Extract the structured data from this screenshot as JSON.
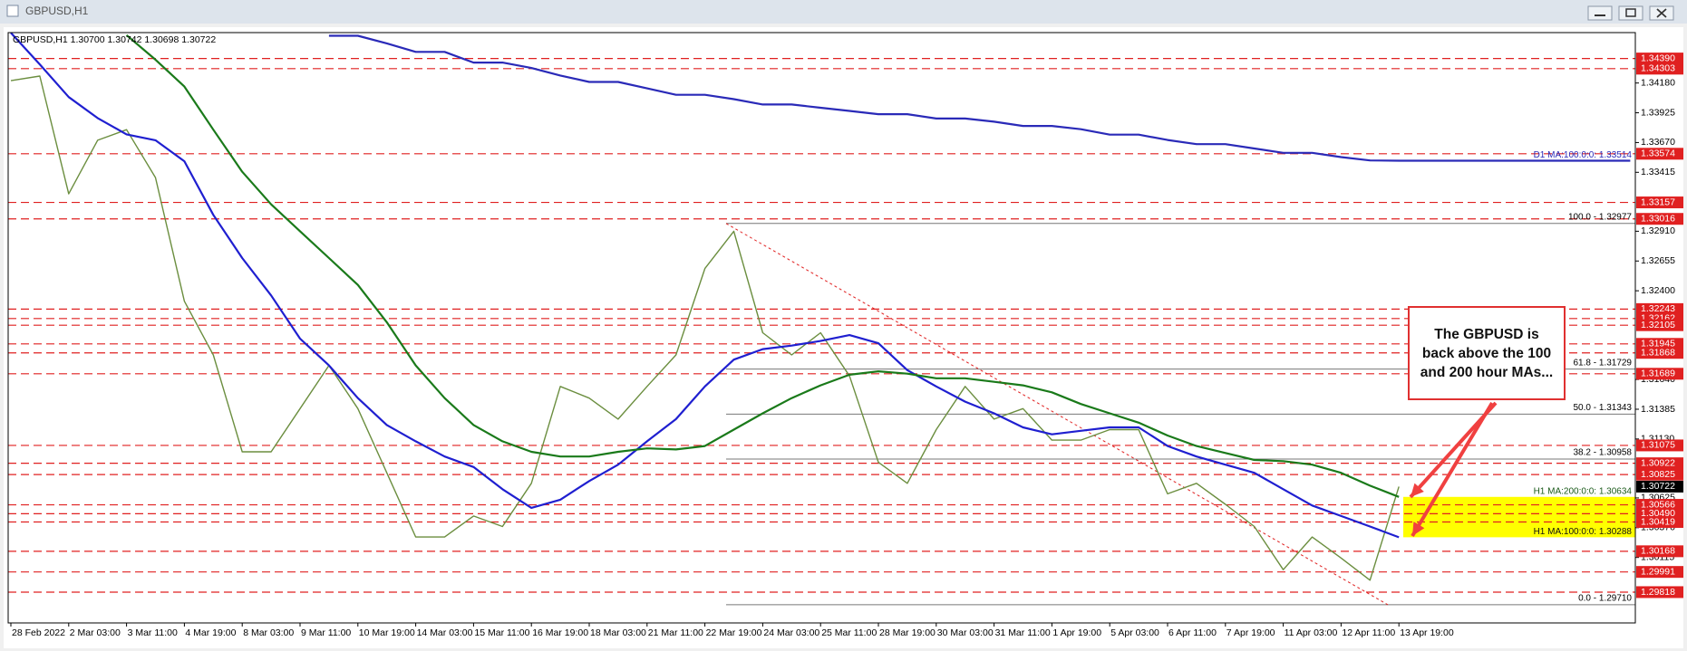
{
  "window_title": "GBPUSD,H1",
  "chart_data": {
    "type": "line",
    "header": "GBPUSD,H1  1.30700 1.30742 1.30698 1.30722",
    "annotation": "The GBPUSD is back above the 100 and 200 hour MAs...",
    "categories": [
      "28 Feb 2022",
      null,
      "2 Mar 03:00",
      null,
      "3 Mar 11:00",
      null,
      "4 Mar 19:00",
      null,
      "8 Mar 03:00",
      null,
      "9 Mar 11:00",
      null,
      "10 Mar 19:00",
      null,
      "14 Mar 03:00",
      null,
      "15 Mar 11:00",
      null,
      "16 Mar 19:00",
      null,
      "18 Mar 03:00",
      null,
      "21 Mar 11:00",
      null,
      "22 Mar 19:00",
      null,
      "24 Mar 03:00",
      null,
      "25 Mar 11:00",
      null,
      "28 Mar 19:00",
      null,
      "30 Mar 03:00",
      null,
      "31 Mar 11:00",
      null,
      "1 Apr 19:00",
      null,
      "5 Apr 03:00",
      null,
      "6 Apr 11:00",
      null,
      "7 Apr 19:00",
      null,
      "11 Apr 03:00",
      null,
      "12 Apr 11:00",
      null,
      "13 Apr 19:00",
      null,
      null,
      null,
      null,
      null,
      null,
      null,
      null
    ],
    "series": [
      {
        "color": "#6b8e3f",
        "values": [
          1.342,
          1.3424,
          1.3323,
          1.3369,
          1.3378,
          1.3337,
          1.3231,
          1.3185,
          1.3102,
          1.3102,
          1.3139,
          1.3176,
          1.3139,
          1.3084,
          1.3029,
          1.3029,
          1.3047,
          1.3038,
          1.3075,
          1.3158,
          1.3148,
          1.313,
          1.3158,
          1.3185,
          1.3259,
          1.3291,
          1.3204,
          1.3185,
          1.3204,
          1.3167,
          1.3093,
          1.3075,
          1.3121,
          1.3158,
          1.313,
          1.3139,
          1.3112,
          1.3112,
          1.3121,
          1.3121,
          1.3066,
          1.3075,
          1.3057,
          1.3038,
          1.3001,
          1.3029,
          1.3011,
          1.2992,
          1.30722,
          null,
          null,
          null,
          null,
          null,
          null,
          null,
          null
        ]
      },
      {
        "color": "#1f1fd0",
        "values": [
          1.3461,
          1.3434,
          1.3406,
          1.3388,
          1.3374,
          1.3369,
          1.3351,
          1.3305,
          1.3268,
          1.3236,
          1.3199,
          1.3176,
          1.3148,
          1.3125,
          1.3111,
          1.3098,
          1.3089,
          1.307,
          1.3054,
          1.3061,
          1.3077,
          1.3091,
          1.3111,
          1.313,
          1.3158,
          1.3181,
          1.319,
          1.3193,
          1.3197,
          1.3202,
          1.3195,
          1.3172,
          1.3158,
          1.3145,
          1.3135,
          1.3123,
          1.3117,
          1.312,
          1.3123,
          1.3123,
          1.3107,
          1.3098,
          1.3091,
          1.3084,
          1.307,
          1.3056,
          1.3047,
          1.3038,
          1.30288,
          null,
          null,
          null,
          null,
          null,
          null,
          null,
          null
        ]
      },
      {
        "color": "#1a7a1a",
        "values": [
          null,
          null,
          null,
          null,
          1.3459,
          1.3438,
          1.3415,
          1.3378,
          1.3342,
          1.3314,
          1.3291,
          1.3268,
          1.3245,
          1.3213,
          1.3176,
          1.3148,
          1.3125,
          1.3111,
          1.3102,
          1.3098,
          1.3098,
          1.3102,
          1.3105,
          1.3104,
          1.3107,
          1.3121,
          1.3135,
          1.3148,
          1.3159,
          1.3168,
          1.3171,
          1.3169,
          1.3165,
          1.3165,
          1.3162,
          1.3159,
          1.3153,
          1.3143,
          1.3135,
          1.3127,
          1.3116,
          1.3107,
          1.3101,
          1.3095,
          1.3094,
          1.3091,
          1.3084,
          1.3073,
          1.30634,
          null,
          null,
          null,
          null,
          null,
          null,
          null,
          null
        ]
      },
      {
        "color": "#2a2ab8",
        "values": [
          null,
          null,
          null,
          null,
          null,
          null,
          null,
          null,
          null,
          null,
          null,
          1.34585,
          1.34585,
          1.3452,
          1.34447,
          1.34447,
          1.34355,
          1.34355,
          1.34309,
          1.34244,
          1.34189,
          1.34189,
          1.34134,
          1.34079,
          1.34079,
          1.34042,
          1.33996,
          1.33996,
          1.33968,
          1.33941,
          1.33913,
          1.33913,
          1.33876,
          1.33876,
          1.33849,
          1.33812,
          1.33812,
          1.33784,
          1.33738,
          1.33738,
          1.33692,
          1.33656,
          1.33656,
          1.33619,
          1.33582,
          1.33582,
          1.33545,
          1.33517,
          1.33514,
          1.33514,
          1.33514,
          1.33514,
          1.33514,
          1.33514,
          1.33514,
          1.33514,
          1.33514
        ]
      }
    ],
    "ylim": [
      1.29554,
      1.34612
    ],
    "yticks": [
      {
        "value": 1.3418,
        "label": "1.34180"
      },
      {
        "value": 1.33925,
        "label": "1.33925"
      },
      {
        "value": 1.3367,
        "label": "1.33670"
      },
      {
        "value": 1.33415,
        "label": "1.33415"
      },
      {
        "value": 1.3291,
        "label": "1.32910"
      },
      {
        "value": 1.32655,
        "label": "1.32655"
      },
      {
        "value": 1.324,
        "label": "1.32400"
      },
      {
        "value": 1.3164,
        "label": "1.31640"
      },
      {
        "value": 1.31385,
        "label": "1.31385"
      },
      {
        "value": 1.3113,
        "label": "1.31130"
      },
      {
        "value": 1.30625,
        "label": "1.30625"
      },
      {
        "value": 1.3037,
        "label": "1.30370"
      },
      {
        "value": 1.30115,
        "label": "1.30115"
      }
    ],
    "level_color": "#e02020",
    "levels": [
      {
        "value": 1.3439,
        "label": "1.34390"
      },
      {
        "value": 1.34303,
        "label": "1.34303"
      },
      {
        "value": 1.33574,
        "label": "1.33574"
      },
      {
        "value": 1.33157,
        "label": "1.33157"
      },
      {
        "value": 1.33016,
        "label": "1.33016"
      },
      {
        "value": 1.32243,
        "label": "1.32243"
      },
      {
        "value": 1.32162,
        "label": "1.32162"
      },
      {
        "value": 1.32105,
        "label": "1.32105"
      },
      {
        "value": 1.31945,
        "label": "1.31945"
      },
      {
        "value": 1.31868,
        "label": "1.31868"
      },
      {
        "value": 1.31689,
        "label": "1.31689"
      },
      {
        "value": 1.31075,
        "label": "1.31075"
      },
      {
        "value": 1.30922,
        "label": "1.30922"
      },
      {
        "value": 1.30825,
        "label": "1.30825"
      },
      {
        "value": 1.30566,
        "label": "1.30566"
      },
      {
        "value": 1.3049,
        "label": "1.30490"
      },
      {
        "value": 1.30419,
        "label": "1.30419"
      },
      {
        "value": 1.30168,
        "label": "1.30168"
      },
      {
        "value": 1.29991,
        "label": "1.29991"
      },
      {
        "value": 1.29818,
        "label": "1.29818"
      }
    ],
    "current_price": {
      "value": 1.30722,
      "label": "1.30722"
    },
    "fib_levels": [
      {
        "value": 1.32977,
        "label": "100.0 - 1.32977"
      },
      {
        "value": 1.31729,
        "label": "61.8 - 1.31729"
      },
      {
        "value": 1.31343,
        "label": "50.0 - 1.31343"
      },
      {
        "value": 1.30958,
        "label": "38.2 - 1.30958"
      },
      {
        "value": 1.2971,
        "label": "0.0 - 1.29710"
      }
    ],
    "ma_labels": [
      {
        "value": 1.33514,
        "label": "D1 MA:100:0:0: 1.33514",
        "color": "#2a2ab8"
      },
      {
        "value": 1.30634,
        "label": "H1 MA:200:0:0: 1.30634",
        "color": "#1a5a1a"
      },
      {
        "value": 1.30288,
        "label": "H1 MA:100:0:0: 1.30288",
        "color": "#111111"
      }
    ],
    "highlight_color": "#ffff00"
  }
}
